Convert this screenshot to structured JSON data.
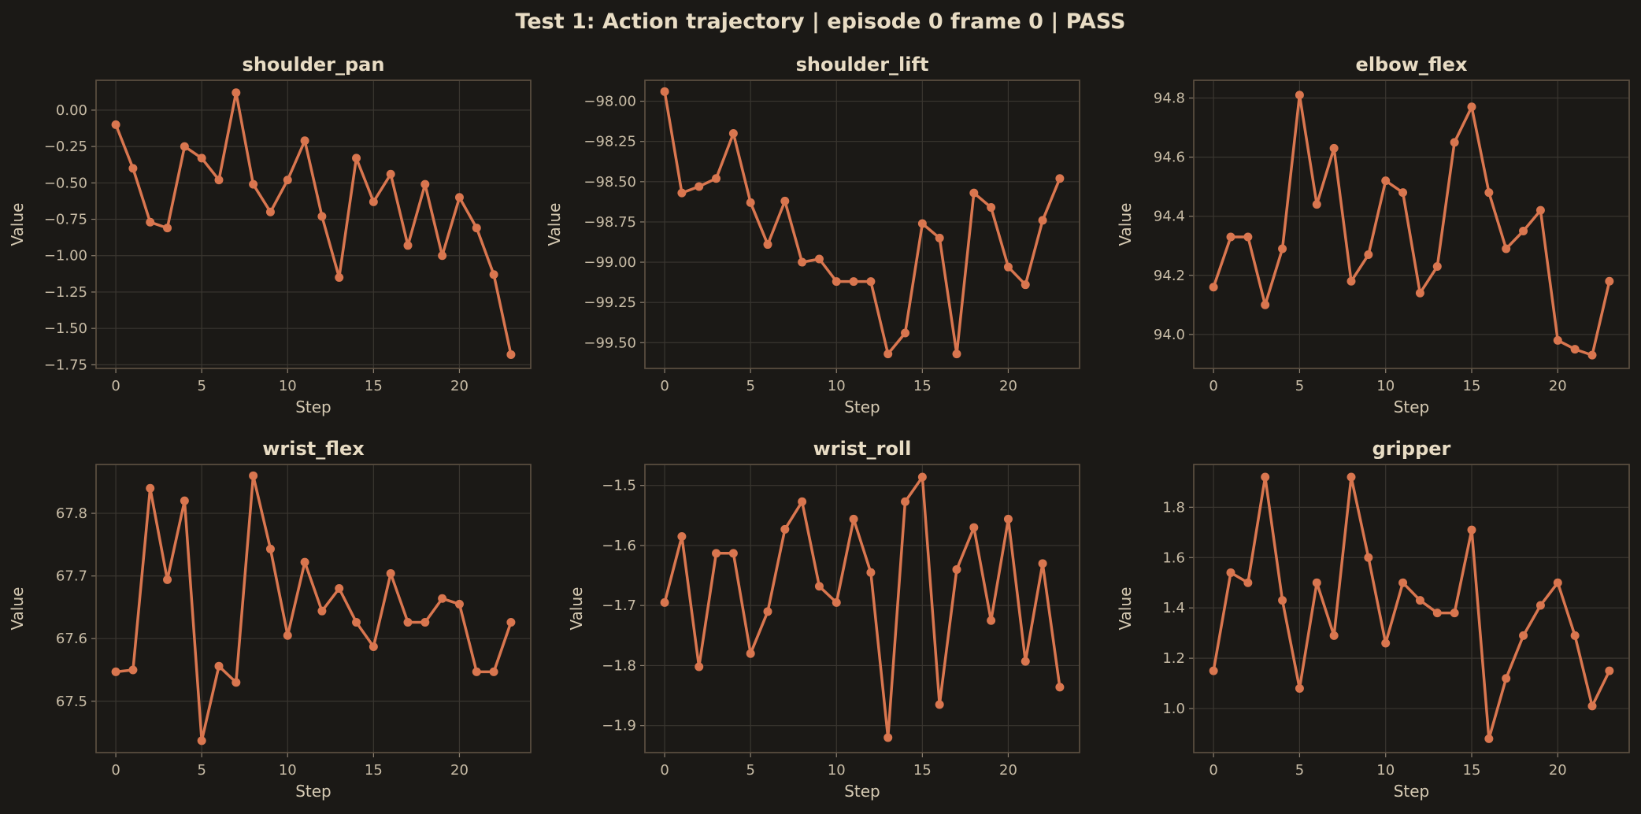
{
  "figure_title": "Test 1: Action trajectory  |  episode 0 frame 0  |  PASS",
  "colors": {
    "background": "#1b1916",
    "line": "#d9764f",
    "text": "#e8dcc4",
    "grid": "#3a3630",
    "frame": "#5a4e40"
  },
  "chart_data": [
    {
      "type": "line",
      "title": "shoulder_pan",
      "xlabel": "Step",
      "ylabel": "Value",
      "xlim": [
        -1.15,
        24.15
      ],
      "ylim": [
        -1.775,
        0.205
      ],
      "xticks": [
        0,
        5,
        10,
        15,
        20
      ],
      "yticks": [
        0.0,
        -0.25,
        -0.5,
        -0.75,
        -1.0,
        -1.25,
        -1.5,
        -1.75
      ],
      "ytick_labels": [
        "0.00",
        "−0.25",
        "−0.50",
        "−0.75",
        "−1.00",
        "−1.25",
        "−1.50",
        "−1.75"
      ],
      "grid": true,
      "marker": "circle",
      "x": [
        0,
        1,
        2,
        3,
        4,
        5,
        6,
        7,
        8,
        9,
        10,
        11,
        12,
        13,
        14,
        15,
        16,
        17,
        18,
        19,
        20,
        21,
        22,
        23
      ],
      "y": [
        -0.1,
        -0.4,
        -0.77,
        -0.81,
        -0.25,
        -0.33,
        -0.48,
        0.12,
        -0.51,
        -0.7,
        -0.48,
        -0.21,
        -0.73,
        -1.15,
        -0.33,
        -0.63,
        -0.44,
        -0.93,
        -0.51,
        -1.0,
        -0.6,
        -0.81,
        -1.13,
        -1.68
      ]
    },
    {
      "type": "line",
      "title": "shoulder_lift",
      "xlabel": "Step",
      "ylabel": "Value",
      "xlim": [
        -1.15,
        24.15
      ],
      "ylim": [
        -99.66,
        -97.87
      ],
      "xticks": [
        0,
        5,
        10,
        15,
        20
      ],
      "yticks": [
        -98.0,
        -98.25,
        -98.5,
        -98.75,
        -99.0,
        -99.25,
        -99.5
      ],
      "ytick_labels": [
        "−98.00",
        "−98.25",
        "−98.50",
        "−98.75",
        "−99.00",
        "−99.25",
        "−99.50"
      ],
      "grid": true,
      "marker": "circle",
      "x": [
        0,
        1,
        2,
        3,
        4,
        5,
        6,
        7,
        8,
        9,
        10,
        11,
        12,
        13,
        14,
        15,
        16,
        17,
        18,
        19,
        20,
        21,
        22,
        23
      ],
      "y": [
        -97.94,
        -98.57,
        -98.53,
        -98.48,
        -98.2,
        -98.63,
        -98.89,
        -98.62,
        -99.0,
        -98.98,
        -99.12,
        -99.12,
        -99.12,
        -99.57,
        -99.44,
        -98.76,
        -98.85,
        -99.57,
        -98.57,
        -98.66,
        -99.03,
        -99.14,
        -98.74,
        -98.48
      ]
    },
    {
      "type": "line",
      "title": "elbow_flex",
      "xlabel": "Step",
      "ylabel": "Value",
      "xlim": [
        -1.15,
        24.15
      ],
      "ylim": [
        93.885,
        94.86
      ],
      "xticks": [
        0,
        5,
        10,
        15,
        20
      ],
      "yticks": [
        94.0,
        94.2,
        94.4,
        94.6,
        94.8
      ],
      "ytick_labels": [
        "94.0",
        "94.2",
        "94.4",
        "94.6",
        "94.8"
      ],
      "grid": true,
      "marker": "circle",
      "x": [
        0,
        1,
        2,
        3,
        4,
        5,
        6,
        7,
        8,
        9,
        10,
        11,
        12,
        13,
        14,
        15,
        16,
        17,
        18,
        19,
        20,
        21,
        22,
        23
      ],
      "y": [
        94.16,
        94.33,
        94.33,
        94.1,
        94.29,
        94.81,
        94.44,
        94.63,
        94.18,
        94.27,
        94.52,
        94.48,
        94.14,
        94.23,
        94.65,
        94.77,
        94.48,
        94.29,
        94.35,
        94.42,
        93.98,
        93.95,
        93.93,
        94.18
      ]
    },
    {
      "type": "line",
      "title": "wrist_flex",
      "xlabel": "Step",
      "ylabel": "Value",
      "xlim": [
        -1.15,
        24.15
      ],
      "ylim": [
        67.418,
        67.878
      ],
      "xticks": [
        0,
        5,
        10,
        15,
        20
      ],
      "yticks": [
        67.5,
        67.6,
        67.7,
        67.8
      ],
      "ytick_labels": [
        "67.5",
        "67.6",
        "67.7",
        "67.8"
      ],
      "grid": true,
      "marker": "circle",
      "x": [
        0,
        1,
        2,
        3,
        4,
        5,
        6,
        7,
        8,
        9,
        10,
        11,
        12,
        13,
        14,
        15,
        16,
        17,
        18,
        19,
        20,
        21,
        22,
        23
      ],
      "y": [
        67.547,
        67.55,
        67.84,
        67.694,
        67.82,
        67.437,
        67.556,
        67.53,
        67.86,
        67.743,
        67.605,
        67.722,
        67.644,
        67.68,
        67.626,
        67.587,
        67.704,
        67.626,
        67.626,
        67.664,
        67.655,
        67.547,
        67.547,
        67.626
      ]
    },
    {
      "type": "line",
      "title": "wrist_roll",
      "xlabel": "Step",
      "ylabel": "Value",
      "xlim": [
        -1.15,
        24.15
      ],
      "ylim": [
        -1.945,
        -1.465
      ],
      "xticks": [
        0,
        5,
        10,
        15,
        20
      ],
      "yticks": [
        -1.5,
        -1.6,
        -1.7,
        -1.8,
        -1.9
      ],
      "ytick_labels": [
        "−1.5",
        "−1.6",
        "−1.7",
        "−1.8",
        "−1.9"
      ],
      "grid": true,
      "marker": "circle",
      "x": [
        0,
        1,
        2,
        3,
        4,
        5,
        6,
        7,
        8,
        9,
        10,
        11,
        12,
        13,
        14,
        15,
        16,
        17,
        18,
        19,
        20,
        21,
        22,
        23
      ],
      "y": [
        -1.695,
        -1.585,
        -1.802,
        -1.613,
        -1.613,
        -1.78,
        -1.71,
        -1.573,
        -1.527,
        -1.668,
        -1.695,
        -1.556,
        -1.645,
        -1.92,
        -1.527,
        -1.486,
        -1.865,
        -1.64,
        -1.57,
        -1.725,
        -1.556,
        -1.793,
        -1.63,
        -1.836
      ]
    },
    {
      "type": "line",
      "title": "gripper",
      "xlabel": "Step",
      "ylabel": "Value",
      "xlim": [
        -1.15,
        24.15
      ],
      "ylim": [
        0.825,
        1.97
      ],
      "xticks": [
        0,
        5,
        10,
        15,
        20
      ],
      "yticks": [
        1.0,
        1.2,
        1.4,
        1.6,
        1.8
      ],
      "ytick_labels": [
        "1.0",
        "1.2",
        "1.4",
        "1.6",
        "1.8"
      ],
      "grid": true,
      "marker": "circle",
      "x": [
        0,
        1,
        2,
        3,
        4,
        5,
        6,
        7,
        8,
        9,
        10,
        11,
        12,
        13,
        14,
        15,
        16,
        17,
        18,
        19,
        20,
        21,
        22,
        23
      ],
      "y": [
        1.15,
        1.54,
        1.5,
        1.92,
        1.43,
        1.08,
        1.5,
        1.29,
        1.92,
        1.6,
        1.26,
        1.5,
        1.43,
        1.38,
        1.38,
        1.71,
        0.88,
        1.12,
        1.29,
        1.41,
        1.5,
        1.29,
        1.01,
        1.15
      ]
    }
  ]
}
